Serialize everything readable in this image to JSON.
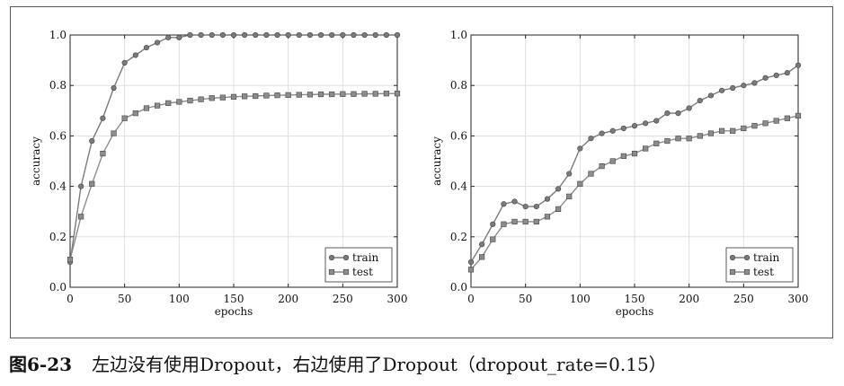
{
  "caption": {
    "figure_number": "图6-23",
    "text": "左边没有使用Dropout，右边使用了Dropout（dropout_rate=0.15）"
  },
  "colors": {
    "train": "#7a7a7a",
    "test": "#8c8c8c",
    "axis": "#222222",
    "grid": "#d9d9d9"
  },
  "chart_data": [
    {
      "type": "line",
      "title": "",
      "xlabel": "epochs",
      "ylabel": "accuracy",
      "xlim": [
        0,
        300
      ],
      "ylim": [
        0.0,
        1.0
      ],
      "xticks": [
        0,
        50,
        100,
        150,
        200,
        250,
        300
      ],
      "yticks": [
        "0.0",
        "0.2",
        "0.4",
        "0.6",
        "0.8",
        "1.0"
      ],
      "grid": true,
      "legend": "bottom-right",
      "series": [
        {
          "name": "train",
          "marker": "circle",
          "x": [
            0,
            10,
            20,
            30,
            40,
            50,
            60,
            70,
            80,
            90,
            100,
            110,
            120,
            130,
            140,
            150,
            160,
            170,
            180,
            190,
            200,
            210,
            220,
            230,
            240,
            250,
            260,
            270,
            280,
            290,
            300
          ],
          "y": [
            0.1,
            0.4,
            0.58,
            0.67,
            0.79,
            0.89,
            0.92,
            0.95,
            0.97,
            0.99,
            0.99,
            1.0,
            1.0,
            1.0,
            1.0,
            1.0,
            1.0,
            1.0,
            1.0,
            1.0,
            1.0,
            1.0,
            1.0,
            1.0,
            1.0,
            1.0,
            1.0,
            1.0,
            1.0,
            1.0,
            1.0
          ]
        },
        {
          "name": "test",
          "marker": "square",
          "x": [
            0,
            10,
            20,
            30,
            40,
            50,
            60,
            70,
            80,
            90,
            100,
            110,
            120,
            130,
            140,
            150,
            160,
            170,
            180,
            190,
            200,
            210,
            220,
            230,
            240,
            250,
            260,
            270,
            280,
            290,
            300
          ],
          "y": [
            0.11,
            0.28,
            0.41,
            0.53,
            0.61,
            0.67,
            0.69,
            0.71,
            0.72,
            0.73,
            0.735,
            0.74,
            0.745,
            0.75,
            0.752,
            0.755,
            0.757,
            0.758,
            0.76,
            0.761,
            0.762,
            0.763,
            0.764,
            0.765,
            0.765,
            0.766,
            0.766,
            0.767,
            0.767,
            0.768,
            0.768
          ]
        }
      ]
    },
    {
      "type": "line",
      "title": "",
      "xlabel": "epochs",
      "ylabel": "accuracy",
      "xlim": [
        0,
        300
      ],
      "ylim": [
        0.0,
        1.0
      ],
      "xticks": [
        0,
        50,
        100,
        150,
        200,
        250,
        300
      ],
      "yticks": [
        "0.0",
        "0.2",
        "0.4",
        "0.6",
        "0.8",
        "1.0"
      ],
      "grid": true,
      "legend": "bottom-right",
      "series": [
        {
          "name": "train",
          "marker": "circle",
          "x": [
            0,
            10,
            20,
            30,
            40,
            50,
            60,
            70,
            80,
            90,
            100,
            110,
            120,
            130,
            140,
            150,
            160,
            170,
            180,
            190,
            200,
            210,
            220,
            230,
            240,
            250,
            260,
            270,
            280,
            290,
            300
          ],
          "y": [
            0.1,
            0.17,
            0.25,
            0.33,
            0.34,
            0.32,
            0.32,
            0.35,
            0.39,
            0.45,
            0.55,
            0.59,
            0.61,
            0.62,
            0.63,
            0.64,
            0.65,
            0.66,
            0.69,
            0.69,
            0.71,
            0.74,
            0.76,
            0.78,
            0.79,
            0.8,
            0.81,
            0.83,
            0.84,
            0.85,
            0.88
          ]
        },
        {
          "name": "test",
          "marker": "square",
          "x": [
            0,
            10,
            20,
            30,
            40,
            50,
            60,
            70,
            80,
            90,
            100,
            110,
            120,
            130,
            140,
            150,
            160,
            170,
            180,
            190,
            200,
            210,
            220,
            230,
            240,
            250,
            260,
            270,
            280,
            290,
            300
          ],
          "y": [
            0.07,
            0.12,
            0.19,
            0.25,
            0.26,
            0.26,
            0.26,
            0.28,
            0.31,
            0.36,
            0.41,
            0.45,
            0.48,
            0.5,
            0.52,
            0.53,
            0.55,
            0.57,
            0.58,
            0.59,
            0.59,
            0.6,
            0.61,
            0.62,
            0.62,
            0.63,
            0.64,
            0.65,
            0.66,
            0.67,
            0.68
          ]
        }
      ]
    }
  ]
}
